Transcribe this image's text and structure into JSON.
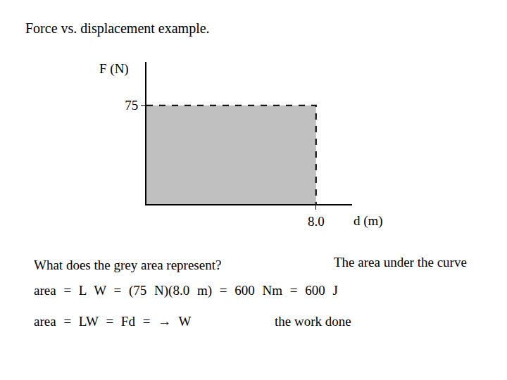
{
  "chart_data": {
    "type": "area",
    "title": "Force vs. displacement example.",
    "x_label": "d (m)",
    "y_label": "F (N)",
    "x": [
      0,
      8.0
    ],
    "values": [
      75,
      75
    ],
    "color": "#c0c0c0",
    "line_style": "dashed",
    "xlim": [
      0,
      9.7
    ],
    "ylim": [
      0,
      108
    ],
    "xticks": [
      {
        "value": 8.0,
        "label": "8.0"
      }
    ],
    "yticks": [
      75
    ],
    "grid": false
  },
  "slide": {
    "question": "What does the grey area represent?",
    "answer_1": "The area under the curve",
    "equation_1": "area = L W = (75 N)(8.0 m) = 600 Nm = 600 J",
    "equation_2": "area = LW = Fd = → W",
    "answer_2": "the work done"
  }
}
